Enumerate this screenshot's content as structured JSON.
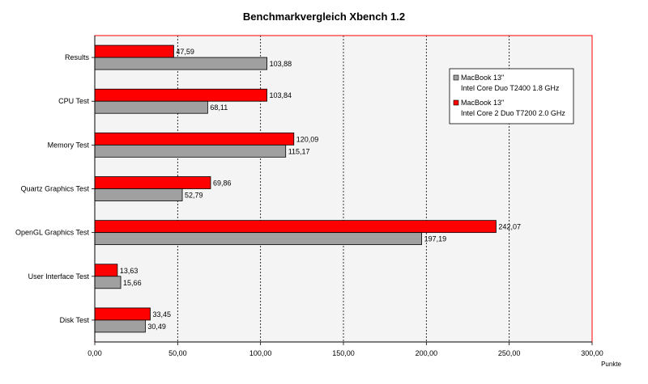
{
  "chart_data": {
    "type": "bar",
    "orientation": "horizontal",
    "title": "Benchmarkvergleich Xbench 1.2",
    "xlabel": "Punkte",
    "ylabel": "",
    "xlim": [
      0,
      300
    ],
    "x_ticks": [
      0,
      50,
      100,
      150,
      200,
      250,
      300
    ],
    "x_tick_labels": [
      "0,00",
      "50,00",
      "100,00",
      "150,00",
      "200,00",
      "250,00",
      "300,00"
    ],
    "grid": "vertical dotted",
    "legend_position": "top-right",
    "categories": [
      "Results",
      "CPU Test",
      "Memory Test",
      "Quartz Graphics Test",
      "OpenGL Graphics Test",
      "User Interface Test",
      "Disk Test"
    ],
    "series": [
      {
        "name": "MacBook 13\" Intel Core 2 Duo T7200 2.0 GHz",
        "legend_lines": [
          "MacBook 13\"",
          "Intel Core 2 Duo T7200 2.0 GHz"
        ],
        "color": "#ff0000",
        "values": [
          47.59,
          103.84,
          120.09,
          69.86,
          242.07,
          13.63,
          33.45
        ],
        "value_labels": [
          "47,59",
          "103,84",
          "120,09",
          "69,86",
          "242,07",
          "13,63",
          "33,45"
        ]
      },
      {
        "name": "MacBook 13\" Intel Core Duo T2400 1.8 GHz",
        "legend_lines": [
          "MacBook 13\"",
          "Intel Core Duo T2400 1.8 GHz"
        ],
        "color": "#a0a0a0",
        "values": [
          103.88,
          68.11,
          115.17,
          52.79,
          197.19,
          15.66,
          30.49
        ],
        "value_labels": [
          "103,88",
          "68,11",
          "115,17",
          "52,79",
          "197,19",
          "15,66",
          "30,49"
        ]
      }
    ],
    "legend_order": [
      1,
      0
    ],
    "frame_color": "#ff0000",
    "plot_background": "#f4f4f4"
  }
}
